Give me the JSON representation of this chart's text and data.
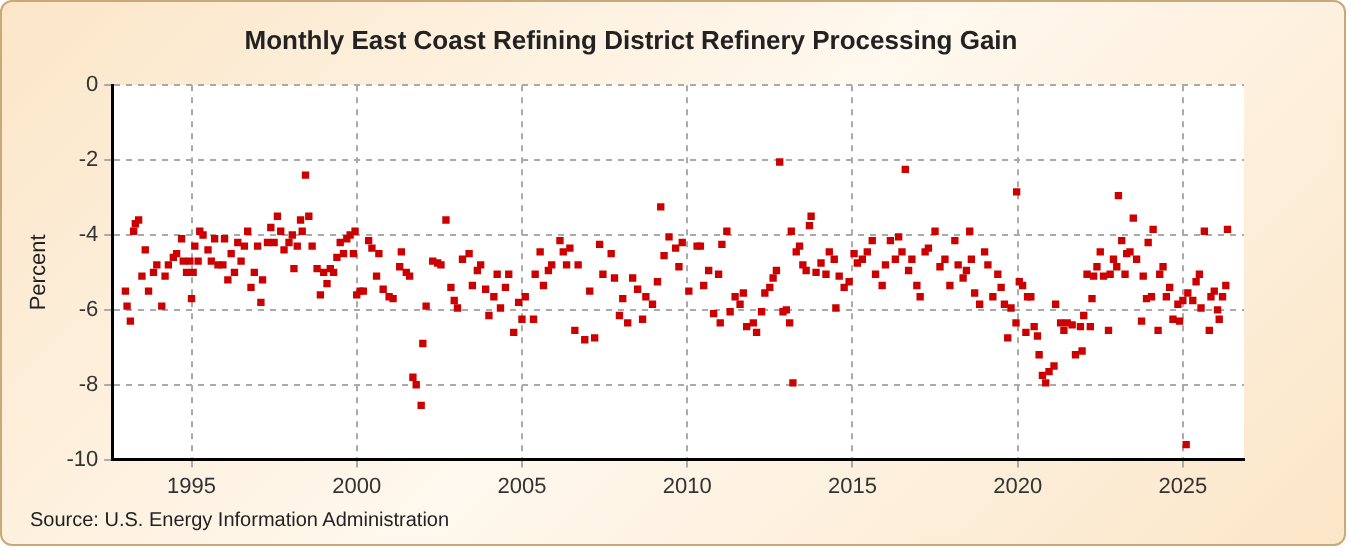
{
  "chart_data": {
    "type": "scatter",
    "title": "Monthly East Coast Refining District Refinery Processing Gain",
    "ylabel": "Percent",
    "annotations": [
      "Source: U.S. Energy Information Administration"
    ],
    "xlim": [
      1992.6,
      2026.85
    ],
    "xticks": [
      1995,
      2000,
      2005,
      2010,
      2015,
      2020,
      2025
    ],
    "ylim": [
      -10,
      0
    ],
    "yticks": [
      -10,
      -8,
      -6,
      -4,
      -2,
      0
    ],
    "grid": true,
    "legend": false,
    "marker": "square",
    "series": [
      {
        "color": "#cc0000",
        "x": [
          1993.0,
          1993.05,
          1993.15,
          1993.25,
          1993.3,
          1993.4,
          1993.5,
          1993.6,
          1993.7,
          1993.85,
          1993.95,
          1994.1,
          1994.2,
          1994.3,
          1994.45,
          1994.55,
          1994.7,
          1994.75,
          1994.85,
          1994.95,
          1995.0,
          1995.05,
          1995.1,
          1995.2,
          1995.25,
          1995.35,
          1995.5,
          1995.6,
          1995.7,
          1995.8,
          1995.95,
          1996.0,
          1996.1,
          1996.2,
          1996.3,
          1996.4,
          1996.5,
          1996.6,
          1996.7,
          1996.8,
          1996.9,
          1997.0,
          1997.1,
          1997.15,
          1997.3,
          1997.4,
          1997.5,
          1997.6,
          1997.7,
          1997.8,
          1997.95,
          1998.05,
          1998.1,
          1998.2,
          1998.3,
          1998.35,
          1998.45,
          1998.55,
          1998.65,
          1998.8,
          1998.9,
          1999.0,
          1999.1,
          1999.2,
          1999.3,
          1999.4,
          1999.5,
          1999.6,
          1999.7,
          1999.8,
          1999.9,
          1999.95,
          2000.0,
          2000.1,
          2000.2,
          2000.36,
          2000.46,
          2000.6,
          2000.67,
          2000.8,
          2000.98,
          2001.1,
          2001.3,
          2001.35,
          2001.5,
          2001.6,
          2001.7,
          2001.8,
          2001.95,
          2002.0,
          2002.1,
          2002.3,
          2002.45,
          2002.55,
          2002.7,
          2002.85,
          2002.95,
          2003.05,
          2003.2,
          2003.4,
          2003.5,
          2003.65,
          2003.75,
          2003.9,
          2004.0,
          2004.15,
          2004.25,
          2004.35,
          2004.5,
          2004.6,
          2004.75,
          2004.9,
          2005.0,
          2005.1,
          2005.35,
          2005.4,
          2005.55,
          2005.65,
          2005.8,
          2005.9,
          2006.15,
          2006.25,
          2006.35,
          2006.45,
          2006.6,
          2006.7,
          2006.9,
          2007.05,
          2007.2,
          2007.35,
          2007.45,
          2007.7,
          2007.8,
          2007.95,
          2008.05,
          2008.2,
          2008.35,
          2008.5,
          2008.65,
          2008.75,
          2008.95,
          2009.1,
          2009.2,
          2009.3,
          2009.45,
          2009.65,
          2009.75,
          2009.85,
          2010.05,
          2010.3,
          2010.4,
          2010.5,
          2010.65,
          2010.8,
          2010.95,
          2011.0,
          2011.05,
          2011.2,
          2011.3,
          2011.45,
          2011.6,
          2011.7,
          2011.8,
          2012.0,
          2012.1,
          2012.25,
          2012.35,
          2012.5,
          2012.6,
          2012.7,
          2012.8,
          2012.9,
          2013.0,
          2013.1,
          2013.15,
          2013.2,
          2013.3,
          2013.4,
          2013.5,
          2013.6,
          2013.7,
          2013.75,
          2013.9,
          2014.05,
          2014.2,
          2014.3,
          2014.45,
          2014.5,
          2014.6,
          2014.75,
          2014.9,
          2015.05,
          2015.15,
          2015.3,
          2015.45,
          2015.6,
          2015.7,
          2015.9,
          2016.0,
          2016.15,
          2016.3,
          2016.4,
          2016.5,
          2016.6,
          2016.7,
          2016.8,
          2016.95,
          2017.05,
          2017.2,
          2017.3,
          2017.5,
          2017.65,
          2017.8,
          2017.95,
          2018.1,
          2018.2,
          2018.35,
          2018.45,
          2018.55,
          2018.6,
          2018.7,
          2018.85,
          2019.0,
          2019.1,
          2019.25,
          2019.4,
          2019.5,
          2019.6,
          2019.7,
          2019.8,
          2019.95,
          2019.97,
          2020.05,
          2020.15,
          2020.25,
          2020.3,
          2020.4,
          2020.5,
          2020.6,
          2020.65,
          2020.75,
          2020.85,
          2020.95,
          2021.1,
          2021.15,
          2021.3,
          2021.4,
          2021.5,
          2021.65,
          2021.75,
          2021.9,
          2021.95,
          2022.0,
          2022.1,
          2022.2,
          2022.25,
          2022.3,
          2022.4,
          2022.5,
          2022.6,
          2022.75,
          2022.8,
          2022.9,
          2023.0,
          2023.05,
          2023.15,
          2023.25,
          2023.3,
          2023.4,
          2023.5,
          2023.6,
          2023.75,
          2023.8,
          2023.9,
          2023.95,
          2024.05,
          2024.1,
          2024.25,
          2024.3,
          2024.4,
          2024.5,
          2024.6,
          2024.7,
          2024.85,
          2024.9,
          2025.0,
          2025.1,
          2025.15,
          2025.3,
          2025.4,
          2025.5,
          2025.55,
          2025.65,
          2025.8,
          2025.85,
          2025.95,
          2026.05,
          2026.1,
          2026.2,
          2026.3,
          2026.35
        ],
        "values": [
          -5.5,
          -5.9,
          -6.3,
          -3.9,
          -3.7,
          -3.6,
          -5.1,
          -4.4,
          -5.5,
          -5.0,
          -4.8,
          -5.9,
          -5.1,
          -4.8,
          -4.6,
          -4.5,
          -4.1,
          -4.7,
          -5.0,
          -4.7,
          -5.7,
          -5.0,
          -4.3,
          -4.7,
          -3.9,
          -4.0,
          -4.4,
          -4.7,
          -4.1,
          -4.8,
          -4.8,
          -4.1,
          -5.2,
          -4.5,
          -5.0,
          -4.2,
          -4.7,
          -4.3,
          -3.9,
          -5.4,
          -5.0,
          -4.3,
          -5.8,
          -5.2,
          -4.2,
          -3.8,
          -4.2,
          -3.5,
          -3.9,
          -4.4,
          -4.2,
          -4.0,
          -4.9,
          -4.3,
          -3.6,
          -3.9,
          -2.4,
          -3.5,
          -4.3,
          -4.9,
          -5.6,
          -5.0,
          -5.3,
          -4.9,
          -5.0,
          -4.6,
          -4.2,
          -4.5,
          -4.1,
          -4.0,
          -4.5,
          -3.9,
          -5.6,
          -5.5,
          -5.5,
          -4.15,
          -4.35,
          -5.1,
          -4.5,
          -5.45,
          -5.65,
          -5.7,
          -4.85,
          -4.45,
          -5.0,
          -5.1,
          -7.8,
          -8.0,
          -8.55,
          -6.9,
          -5.9,
          -4.7,
          -4.75,
          -4.8,
          -3.6,
          -5.4,
          -5.75,
          -5.95,
          -4.65,
          -4.5,
          -5.35,
          -4.95,
          -4.8,
          -5.45,
          -6.15,
          -5.65,
          -5.05,
          -5.95,
          -5.4,
          -5.05,
          -6.6,
          -5.8,
          -6.25,
          -5.65,
          -6.25,
          -5.05,
          -4.45,
          -5.35,
          -4.95,
          -4.8,
          -4.15,
          -4.45,
          -4.8,
          -4.35,
          -6.55,
          -4.8,
          -6.8,
          -5.5,
          -6.75,
          -4.25,
          -5.05,
          -4.5,
          -5.15,
          -6.15,
          -5.7,
          -6.35,
          -5.15,
          -5.45,
          -6.25,
          -5.65,
          -5.85,
          -5.25,
          -3.25,
          -4.55,
          -4.05,
          -4.35,
          -4.85,
          -4.2,
          -5.5,
          -4.3,
          -4.3,
          -5.35,
          -4.95,
          -6.1,
          -5.05,
          -6.35,
          -4.25,
          -3.9,
          -6.05,
          -5.65,
          -5.85,
          -5.55,
          -6.45,
          -6.35,
          -6.6,
          -6.05,
          -5.55,
          -5.4,
          -5.15,
          -4.95,
          -2.05,
          -6.05,
          -6.0,
          -6.35,
          -3.9,
          -7.95,
          -4.45,
          -4.3,
          -4.8,
          -4.95,
          -3.75,
          -3.5,
          -5.0,
          -4.75,
          -5.05,
          -4.45,
          -4.65,
          -5.95,
          -5.1,
          -5.4,
          -5.25,
          -4.5,
          -4.75,
          -4.65,
          -4.45,
          -4.15,
          -5.05,
          -5.35,
          -4.8,
          -4.15,
          -4.65,
          -4.05,
          -4.45,
          -2.25,
          -4.95,
          -4.65,
          -5.35,
          -5.65,
          -4.45,
          -4.35,
          -3.9,
          -4.85,
          -4.65,
          -5.35,
          -4.15,
          -4.8,
          -5.15,
          -4.95,
          -3.9,
          -4.65,
          -5.55,
          -5.85,
          -4.45,
          -4.8,
          -5.65,
          -5.05,
          -5.4,
          -5.85,
          -6.75,
          -5.95,
          -6.35,
          -2.85,
          -5.25,
          -5.35,
          -6.6,
          -5.65,
          -5.65,
          -6.45,
          -6.7,
          -7.2,
          -7.75,
          -7.95,
          -7.65,
          -7.5,
          -5.85,
          -6.35,
          -6.55,
          -6.35,
          -6.4,
          -7.2,
          -6.45,
          -7.1,
          -6.15,
          -5.05,
          -6.45,
          -5.7,
          -5.1,
          -4.85,
          -4.45,
          -5.1,
          -6.55,
          -5.05,
          -4.65,
          -4.85,
          -2.95,
          -4.15,
          -5.05,
          -4.5,
          -4.45,
          -3.55,
          -4.65,
          -6.3,
          -5.1,
          -5.7,
          -4.2,
          -5.65,
          -3.85,
          -6.55,
          -5.05,
          -4.85,
          -5.65,
          -5.4,
          -6.25,
          -5.85,
          -6.3,
          -5.75,
          -9.6,
          -5.55,
          -5.75,
          -5.25,
          -5.05,
          -5.95,
          -3.9,
          -6.55,
          -5.65,
          -5.5,
          -6.0,
          -6.25,
          -5.65,
          -5.35,
          -3.85
        ]
      }
    ]
  }
}
